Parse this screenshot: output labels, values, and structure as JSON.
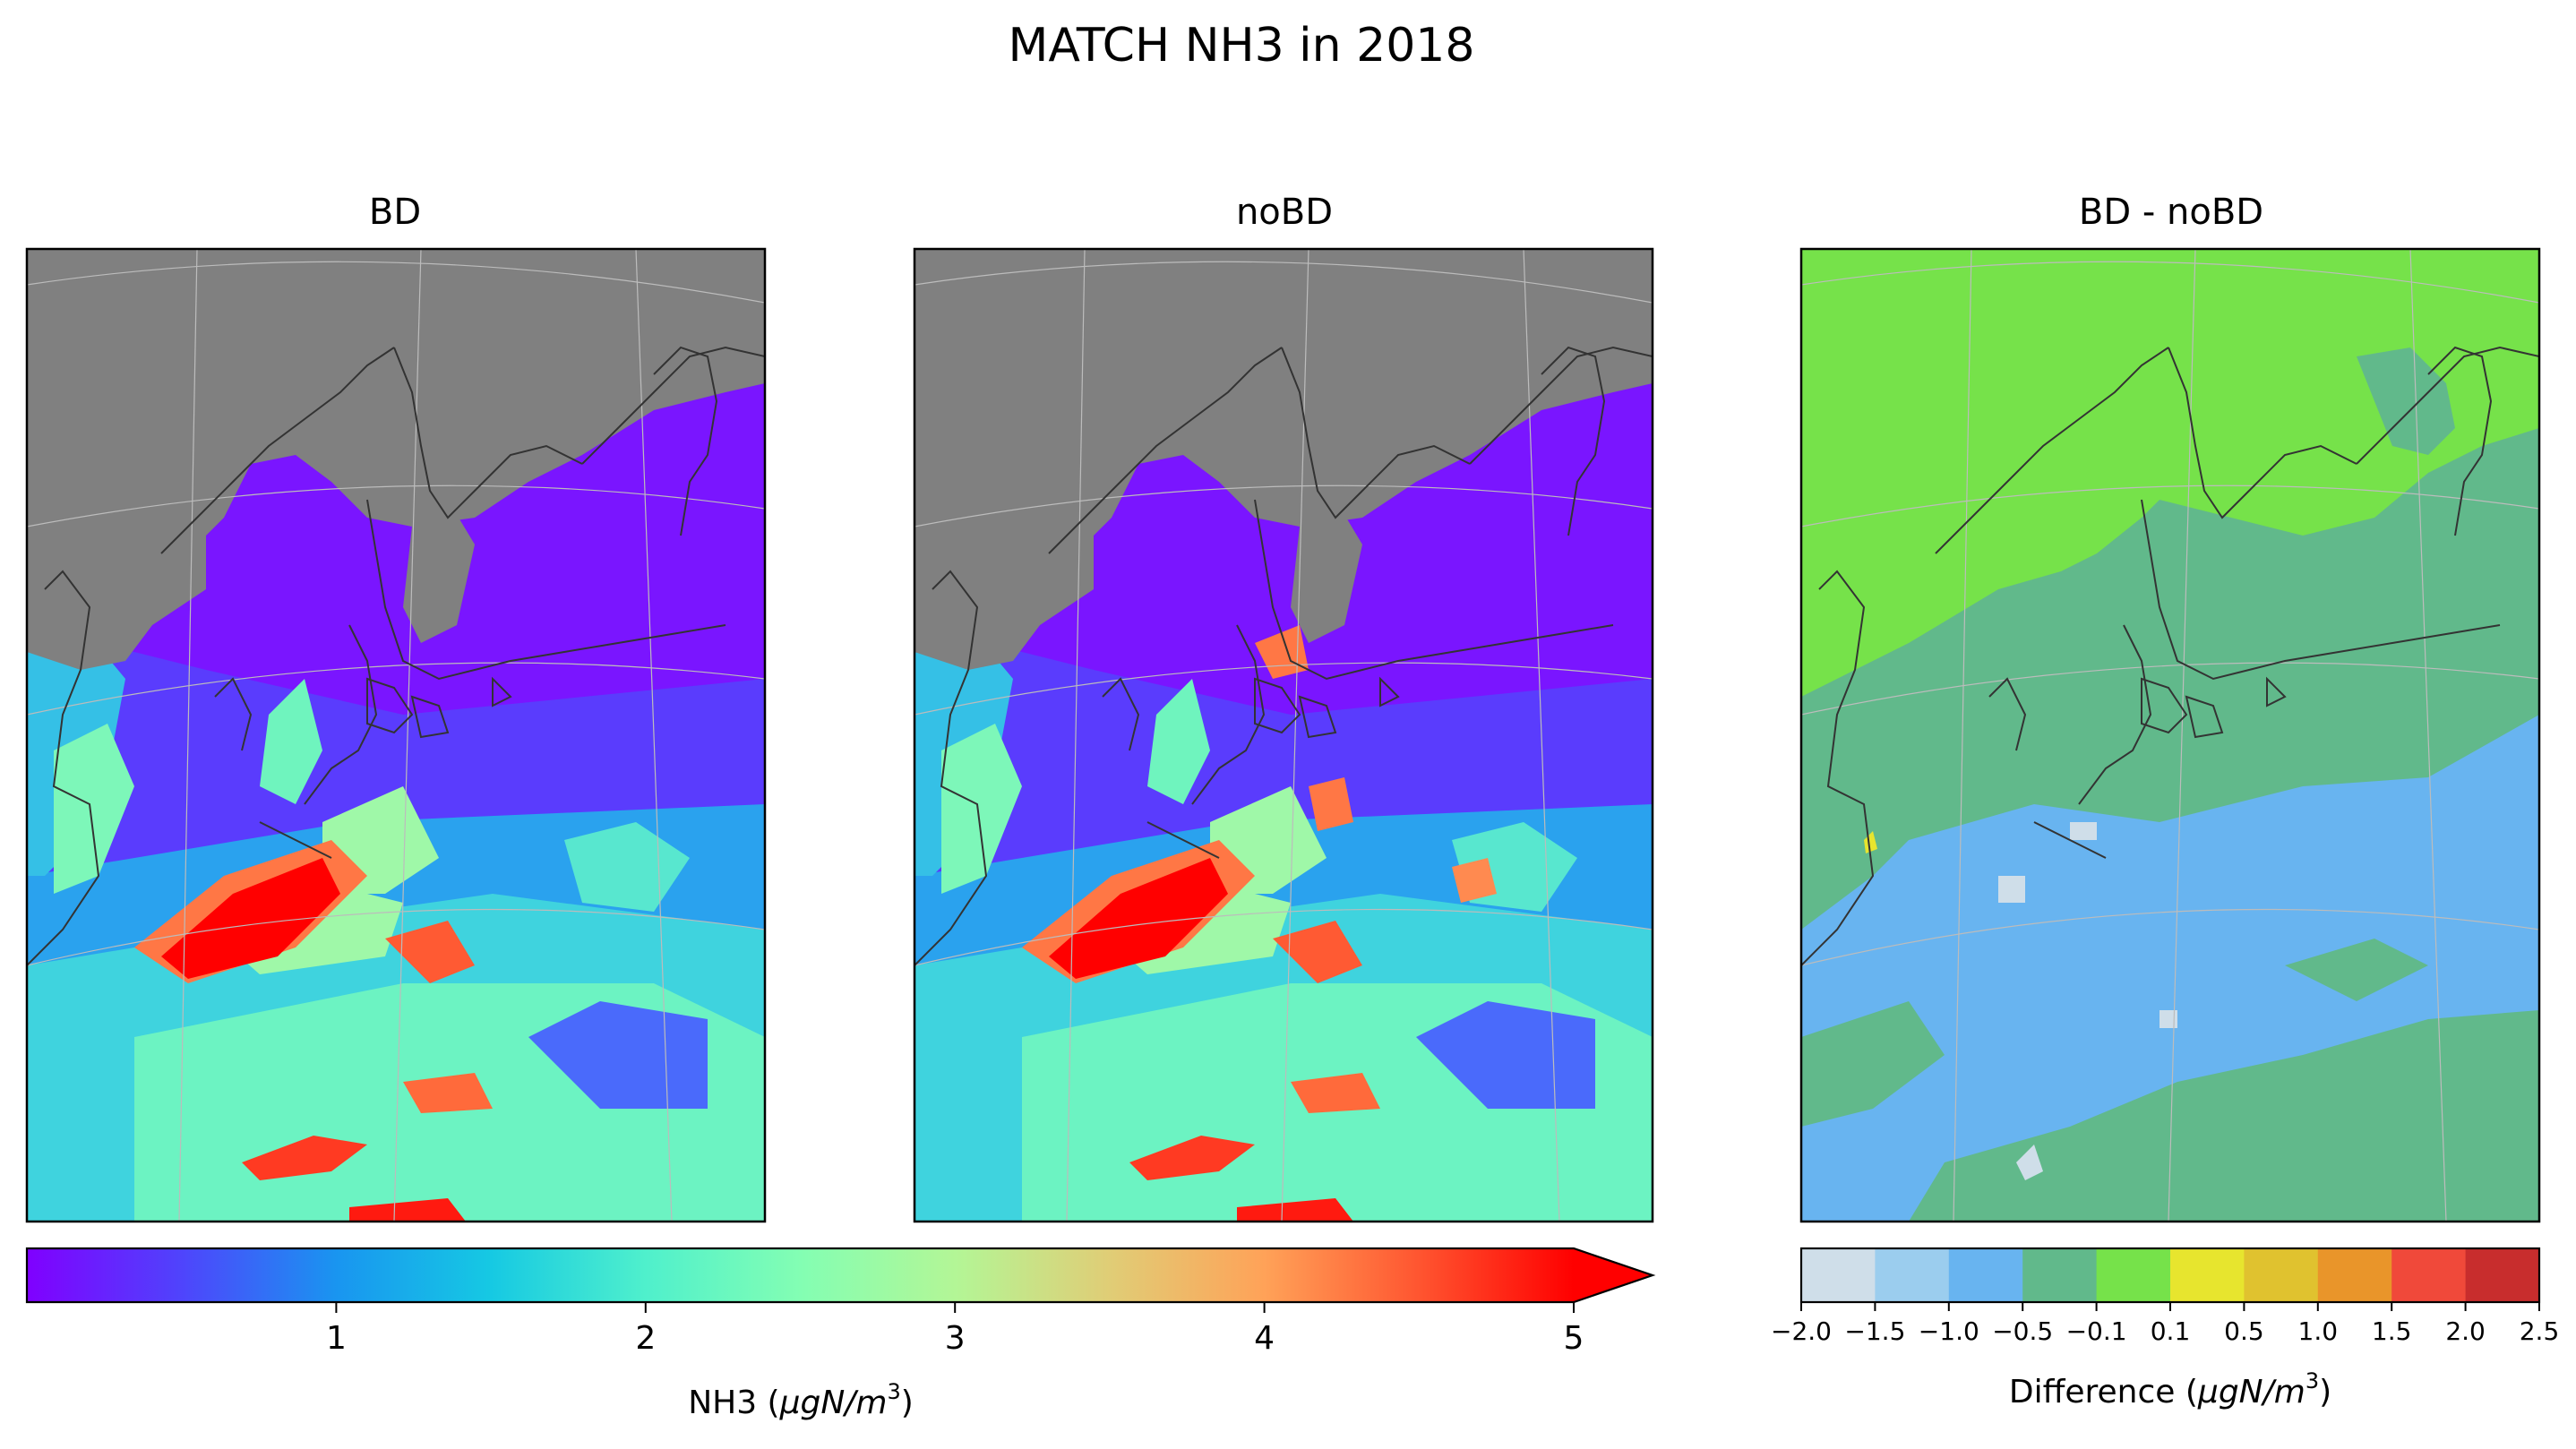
{
  "figure": {
    "title": "MATCH NH3 in 2018"
  },
  "panels": [
    {
      "id": "bd",
      "title": "BD",
      "kind": "concentration"
    },
    {
      "id": "nobd",
      "title": "noBD",
      "kind": "concentration"
    },
    {
      "id": "diff",
      "title": "BD - noBD",
      "kind": "difference"
    }
  ],
  "colorbar_main": {
    "label_plain": "NH3 (",
    "label_unit": "μgN/m",
    "label_sup": "3",
    "label_close": ")",
    "ticks": [
      "1",
      "2",
      "3",
      "4",
      "5"
    ],
    "tick_values": [
      1,
      2,
      3,
      4,
      5
    ],
    "vmin": 0,
    "vmax": 5,
    "extend": "max",
    "colormap": "rainbow"
  },
  "colorbar_diff": {
    "label_plain": "Difference (",
    "label_unit": "μgN/m",
    "label_sup": "3",
    "label_close": ")",
    "ticks": [
      "−2.0",
      "−1.5",
      "−1.0",
      "−0.5",
      "−0.1",
      "0.1",
      "0.5",
      "1.0",
      "1.5",
      "2.0",
      "2.5"
    ],
    "bin_colors": [
      "#cfdee9",
      "#9bcdee",
      "#68b4f0",
      "#61b98b",
      "#76e24a",
      "#e7e52e",
      "#e0c22f",
      "#e9952a",
      "#f0493a",
      "#c82d2d"
    ]
  },
  "colors": {
    "land_mask": "#808080",
    "graticule": "#bcbcbc",
    "coastline": "#333333"
  }
}
